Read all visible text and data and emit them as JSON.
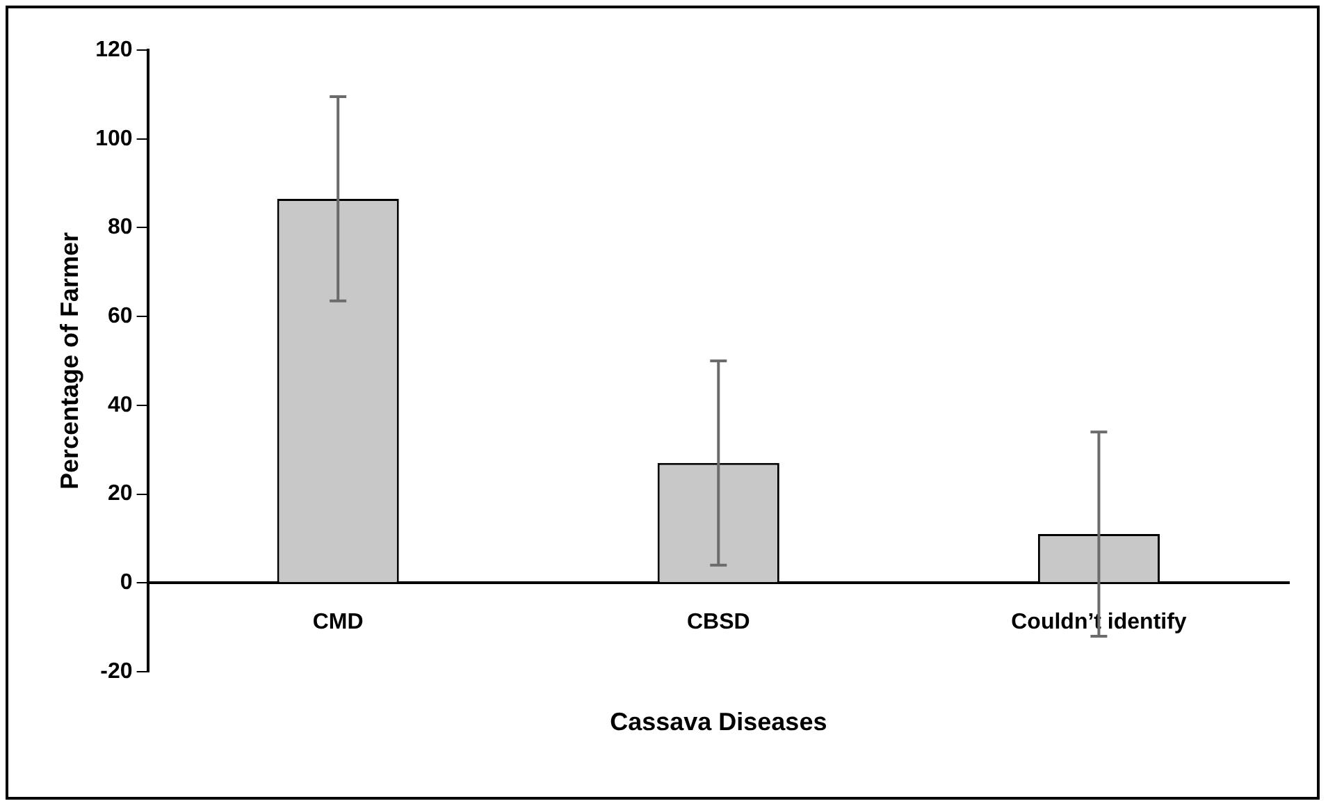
{
  "chart_data": {
    "type": "bar",
    "xlabel": "Cassava Diseases",
    "ylabel": "Percentage of Farmer",
    "categories": [
      "CMD",
      "CBSD",
      "Couldn’t identify"
    ],
    "values": [
      86.5,
      27,
      11
    ],
    "errors": [
      23,
      23,
      23
    ],
    "color": "#c8c8c8",
    "ylim": [
      -20,
      120
    ],
    "yticks": [
      -20,
      0,
      20,
      40,
      60,
      80,
      100,
      120
    ],
    "grid": false,
    "legend": false
  }
}
